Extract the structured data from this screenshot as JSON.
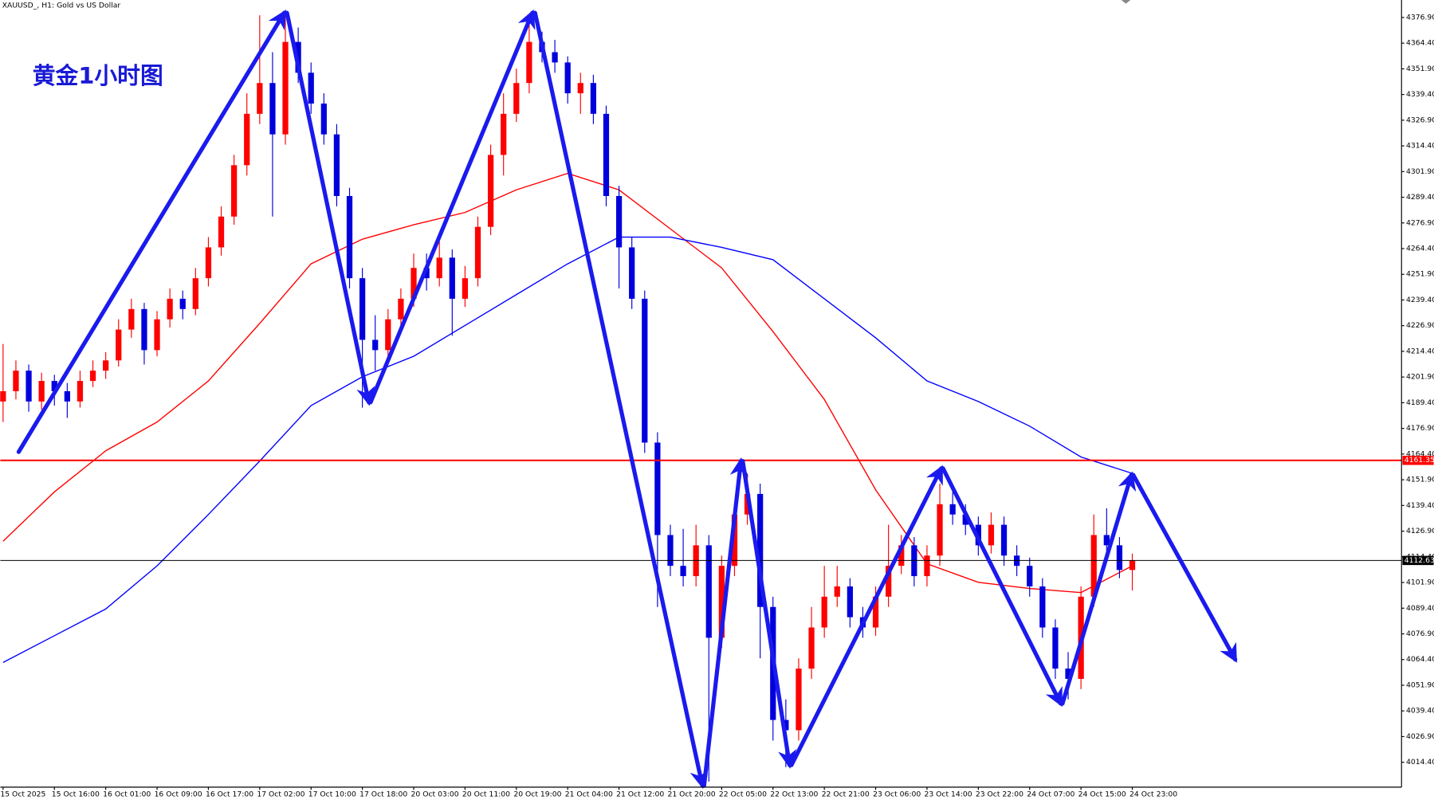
{
  "chart_data": {
    "type": "candlestick",
    "title": "XAUUSD_, H1:  Gold vs US Dollar",
    "annotation": "黄金1小时图",
    "up_color": "#ff0000",
    "down_color": "#0000dd",
    "categories": [
      "15 Oct 2025",
      null,
      null,
      null,
      "15 Oct 16:00",
      null,
      null,
      null,
      "16 Oct 01:00",
      null,
      null,
      null,
      "16 Oct 09:00",
      null,
      null,
      null,
      "16 Oct 17:00",
      null,
      null,
      null,
      "17 Oct 02:00",
      null,
      null,
      null,
      "17 Oct 10:00",
      null,
      null,
      null,
      "17 Oct 18:00",
      null,
      null,
      null,
      "20 Oct 03:00",
      null,
      null,
      null,
      "20 Oct 11:00",
      null,
      null,
      null,
      "20 Oct 19:00",
      null,
      null,
      null,
      "21 Oct 04:00",
      null,
      null,
      null,
      "21 Oct 12:00",
      null,
      null,
      null,
      "21 Oct 20:00",
      null,
      null,
      null,
      "22 Oct 05:00",
      null,
      null,
      null,
      "22 Oct 13:00",
      null,
      null,
      null,
      "22 Oct 21:00",
      null,
      null,
      null,
      "23 Oct 06:00",
      null,
      null,
      null,
      "23 Oct 14:00",
      null,
      null,
      null,
      "23 Oct 22:00",
      null,
      null,
      null,
      "24 Oct 07:00",
      null,
      null,
      null,
      "24 Oct 15:00",
      null,
      null,
      null,
      "24 Oct 23:00"
    ],
    "candles": [
      [
        4190,
        4218,
        4180,
        4195
      ],
      [
        4195,
        4210,
        4191,
        4205
      ],
      [
        4205,
        4208,
        4185,
        4190
      ],
      [
        4190,
        4204,
        4186,
        4200
      ],
      [
        4200,
        4203,
        4188,
        4195
      ],
      [
        4195,
        4199,
        4182,
        4190
      ],
      [
        4190,
        4205,
        4187,
        4200
      ],
      [
        4200,
        4210,
        4197,
        4205
      ],
      [
        4205,
        4214,
        4201,
        4210
      ],
      [
        4210,
        4230,
        4207,
        4225
      ],
      [
        4225,
        4240,
        4221,
        4235
      ],
      [
        4235,
        4238,
        4208,
        4215
      ],
      [
        4215,
        4234,
        4212,
        4230
      ],
      [
        4230,
        4245,
        4226,
        4240
      ],
      [
        4240,
        4244,
        4230,
        4235
      ],
      [
        4235,
        4255,
        4232,
        4250
      ],
      [
        4250,
        4270,
        4246,
        4265
      ],
      [
        4265,
        4285,
        4261,
        4280
      ],
      [
        4280,
        4310,
        4276,
        4305
      ],
      [
        4305,
        4340,
        4300,
        4330
      ],
      [
        4330,
        4378,
        4325,
        4345
      ],
      [
        4345,
        4360,
        4280,
        4320
      ],
      [
        4320,
        4378,
        4315,
        4365
      ],
      [
        4365,
        4372,
        4345,
        4350
      ],
      [
        4350,
        4355,
        4330,
        4335
      ],
      [
        4335,
        4340,
        4315,
        4320
      ],
      [
        4320,
        4325,
        4285,
        4290
      ],
      [
        4290,
        4294,
        4245,
        4250
      ],
      [
        4250,
        4255,
        4187,
        4220
      ],
      [
        4220,
        4232,
        4205,
        4215
      ],
      [
        4215,
        4235,
        4211,
        4230
      ],
      [
        4230,
        4245,
        4225,
        4240
      ],
      [
        4240,
        4262,
        4236,
        4255
      ],
      [
        4255,
        4262,
        4244,
        4250
      ],
      [
        4250,
        4268,
        4246,
        4260
      ],
      [
        4260,
        4264,
        4222,
        4240
      ],
      [
        4240,
        4256,
        4236,
        4250
      ],
      [
        4250,
        4280,
        4246,
        4275
      ],
      [
        4275,
        4315,
        4271,
        4310
      ],
      [
        4310,
        4340,
        4300,
        4330
      ],
      [
        4330,
        4352,
        4326,
        4345
      ],
      [
        4345,
        4378,
        4340,
        4365
      ],
      [
        4365,
        4370,
        4355,
        4360
      ],
      [
        4360,
        4366,
        4350,
        4355
      ],
      [
        4355,
        4358,
        4335,
        4340
      ],
      [
        4340,
        4350,
        4330,
        4345
      ],
      [
        4345,
        4349,
        4325,
        4330
      ],
      [
        4330,
        4334,
        4285,
        4290
      ],
      [
        4290,
        4295,
        4245,
        4265
      ],
      [
        4265,
        4270,
        4235,
        4240
      ],
      [
        4240,
        4244,
        4165,
        4170
      ],
      [
        4170,
        4175,
        4090,
        4125
      ],
      [
        4125,
        4130,
        4105,
        4110
      ],
      [
        4110,
        4128,
        4100,
        4105
      ],
      [
        4105,
        4130,
        4100,
        4120
      ],
      [
        4120,
        4125,
        4005,
        4075
      ],
      [
        4075,
        4115,
        4070,
        4110
      ],
      [
        4110,
        4140,
        4105,
        4135
      ],
      [
        4135,
        4155,
        4130,
        4145
      ],
      [
        4145,
        4150,
        4065,
        4090
      ],
      [
        4090,
        4095,
        4025,
        4035
      ],
      [
        4035,
        4045,
        4012,
        4030
      ],
      [
        4030,
        4065,
        4025,
        4060
      ],
      [
        4060,
        4090,
        4055,
        4080
      ],
      [
        4080,
        4110,
        4075,
        4095
      ],
      [
        4095,
        4110,
        4090,
        4100
      ],
      [
        4100,
        4104,
        4080,
        4085
      ],
      [
        4085,
        4090,
        4075,
        4080
      ],
      [
        4080,
        4100,
        4076,
        4095
      ],
      [
        4095,
        4130,
        4090,
        4110
      ],
      [
        4110,
        4125,
        4106,
        4120
      ],
      [
        4120,
        4124,
        4100,
        4105
      ],
      [
        4105,
        4120,
        4100,
        4115
      ],
      [
        4115,
        4150,
        4110,
        4140
      ],
      [
        4140,
        4146,
        4130,
        4135
      ],
      [
        4135,
        4140,
        4125,
        4130
      ],
      [
        4130,
        4134,
        4115,
        4120
      ],
      [
        4120,
        4136,
        4116,
        4130
      ],
      [
        4130,
        4134,
        4110,
        4115
      ],
      [
        4115,
        4120,
        4105,
        4110
      ],
      [
        4110,
        4114,
        4095,
        4100
      ],
      [
        4100,
        4104,
        4075,
        4080
      ],
      [
        4080,
        4084,
        4055,
        4060
      ],
      [
        4060,
        4068,
        4045,
        4055
      ],
      [
        4055,
        4100,
        4050,
        4095
      ],
      [
        4095,
        4135,
        4090,
        4125
      ],
      [
        4125,
        4138,
        4115,
        4120
      ],
      [
        4120,
        4124,
        4104,
        4108
      ],
      [
        4108,
        4116,
        4098,
        4112.63
      ]
    ],
    "series": [
      {
        "color": "#ff0000",
        "x": [
          0,
          4,
          8,
          12,
          16,
          20,
          24,
          28,
          32,
          36,
          40,
          44,
          48,
          52,
          56,
          60,
          64,
          68,
          72,
          76,
          80,
          84,
          88
        ],
        "values": [
          4122,
          4146,
          4166,
          4180,
          4200,
          4228,
          4257,
          4269,
          4276,
          4282,
          4293,
          4301,
          4293,
          4274,
          4255,
          4224,
          4191,
          4147,
          4111,
          4102,
          4099,
          4097,
          4110
        ]
      },
      {
        "color": "#0000ff",
        "x": [
          0,
          4,
          8,
          12,
          16,
          20,
          24,
          28,
          32,
          36,
          40,
          44,
          48,
          52,
          56,
          60,
          64,
          68,
          72,
          76,
          80,
          84,
          88
        ],
        "values": [
          4063,
          4076,
          4089,
          4110,
          4135,
          4161,
          4188,
          4202,
          4212,
          4227,
          4242,
          4257,
          4270,
          4270,
          4265,
          4259,
          4240,
          4221,
          4200,
          4190,
          4178,
          4163,
          4155
        ]
      }
    ],
    "hlines": [
      {
        "value": 4161.35,
        "color": "#ff0000"
      },
      {
        "value": 4112.63,
        "color": "#000000"
      }
    ],
    "ylim": [
      4002.3,
      4385.4
    ],
    "yticks": [
      {
        "value": 4014.4,
        "label": "4014.40"
      },
      {
        "value": 4026.9,
        "label": "4026.90"
      },
      {
        "value": 4039.4,
        "label": "4039.40"
      },
      {
        "value": 4051.9,
        "label": "4051.90"
      },
      {
        "value": 4064.4,
        "label": "4064.40"
      },
      {
        "value": 4076.9,
        "label": "4076.90"
      },
      {
        "value": 4089.4,
        "label": "4089.40"
      },
      {
        "value": 4101.9,
        "label": "4101.90"
      },
      {
        "value": 4114.4,
        "label": "4114.40"
      },
      {
        "value": 4126.9,
        "label": "4126.90"
      },
      {
        "value": 4139.4,
        "label": "4139.40"
      },
      {
        "value": 4151.9,
        "label": "4151.90"
      },
      {
        "value": 4164.4,
        "label": "4164.40"
      },
      {
        "value": 4176.9,
        "label": "4176.90"
      },
      {
        "value": 4189.4,
        "label": "4189.40"
      },
      {
        "value": 4201.9,
        "label": "4201.90"
      },
      {
        "value": 4214.4,
        "label": "4214.40"
      },
      {
        "value": 4226.9,
        "label": "4226.90"
      },
      {
        "value": 4239.4,
        "label": "4239.40"
      },
      {
        "value": 4251.9,
        "label": "4251.90"
      },
      {
        "value": 4264.4,
        "label": "4264.40"
      },
      {
        "value": 4276.9,
        "label": "4276.90"
      },
      {
        "value": 4289.4,
        "label": "4289.40"
      },
      {
        "value": 4301.9,
        "label": "4301.90"
      },
      {
        "value": 4314.4,
        "label": "4314.40"
      },
      {
        "value": 4326.9,
        "label": "4326.90"
      },
      {
        "value": 4339.4,
        "label": "4339.40"
      },
      {
        "value": 4351.9,
        "label": "4351.90"
      },
      {
        "value": 4364.4,
        "label": "4364.40"
      },
      {
        "value": 4376.9,
        "label": "4376.90"
      }
    ],
    "grid": false
  }
}
